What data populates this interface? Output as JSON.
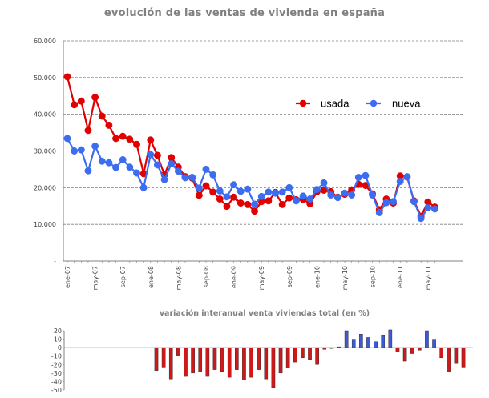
{
  "chart_data": [
    {
      "type": "line",
      "title": "evolución de las ventas de vivienda en españa",
      "ylim": [
        0,
        60000
      ],
      "y_ticks": [
        "-",
        "10.000",
        "20.000",
        "30.000",
        "40.000",
        "50.000",
        "60.000"
      ],
      "y_tick_values": [
        0,
        10000,
        20000,
        30000,
        40000,
        50000,
        60000
      ],
      "x_tick_labels": [
        "ene-07",
        "may-07",
        "sep-07",
        "ene-08",
        "may-08",
        "sep-08",
        "ene-09",
        "may-09",
        "sep-09",
        "ene-10",
        "may-10",
        "sep-10",
        "ene-11",
        "may-11"
      ],
      "x_tick_index": [
        0,
        4,
        8,
        12,
        16,
        20,
        24,
        28,
        32,
        36,
        40,
        44,
        48,
        52
      ],
      "grid": true,
      "legend": "top-right",
      "series": [
        {
          "name": "usada",
          "color": "#e00000",
          "values": [
            50200,
            42600,
            43600,
            35600,
            44600,
            39500,
            37000,
            33400,
            34000,
            33200,
            31800,
            23800,
            33000,
            28800,
            23500,
            28200,
            25600,
            23000,
            22600,
            17900,
            20500,
            18800,
            16900,
            14900,
            17400,
            15800,
            15400,
            13600,
            16200,
            16400,
            18700,
            15400,
            17200,
            16700,
            16800,
            15600,
            18900,
            19300,
            18900,
            17400,
            18200,
            19400,
            20900,
            20600,
            18300,
            14000,
            16900,
            15800,
            23200,
            22900,
            16400,
            12200,
            16100,
            14700
          ]
        },
        {
          "name": "nueva",
          "color": "#3c6cf0",
          "values": [
            33400,
            30000,
            30300,
            24600,
            31300,
            27200,
            26800,
            25500,
            27600,
            25600,
            24000,
            20000,
            29000,
            26200,
            22200,
            26500,
            24500,
            22700,
            22800,
            19900,
            25000,
            23500,
            19100,
            17500,
            20800,
            19000,
            19600,
            15500,
            17600,
            18800,
            18500,
            18800,
            20000,
            16400,
            17700,
            16900,
            19500,
            21300,
            18000,
            17300,
            18500,
            18000,
            22800,
            23300,
            18000,
            13200,
            15900,
            16200,
            21700,
            23000,
            16200,
            11600,
            14500,
            14200
          ]
        }
      ]
    },
    {
      "type": "bar",
      "title": "variación interanual venta viviendas total (en %)",
      "ylim": [
        -50,
        20
      ],
      "y_ticks": [
        "20",
        "10",
        "0",
        "-10",
        "-20",
        "-30",
        "-40",
        "-50"
      ],
      "y_tick_values": [
        20,
        10,
        0,
        -10,
        -20,
        -30,
        -40,
        -50
      ],
      "grid": false,
      "positive_color": "#3c5ad8",
      "negative_color": "#d01818",
      "values": [
        -27,
        -23,
        -37,
        -9,
        -34,
        -30,
        -29,
        -34,
        -26,
        -28,
        -35,
        -26,
        -38,
        -35,
        -26,
        -37,
        -47,
        -30,
        -24,
        -17,
        -12,
        -14,
        -20,
        -2,
        -1,
        1,
        20,
        10,
        16,
        12,
        7,
        15,
        21,
        -5,
        -16,
        -7,
        -3,
        20,
        10,
        -12,
        -29,
        -18,
        -23
      ]
    }
  ]
}
